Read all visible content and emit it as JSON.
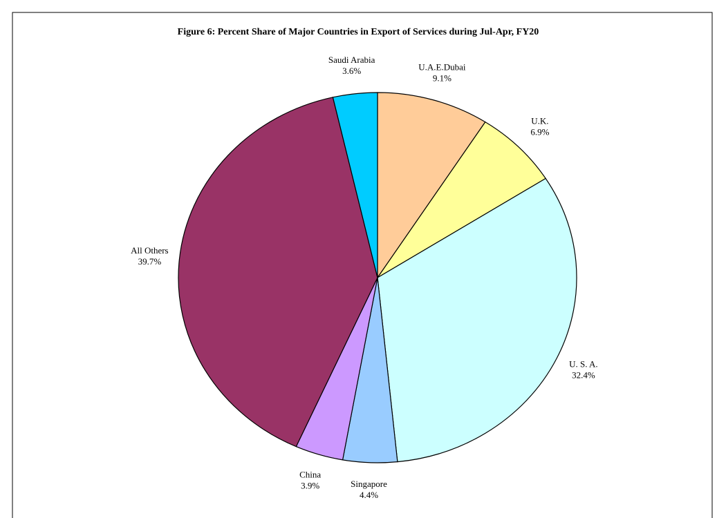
{
  "chart_data": {
    "type": "pie",
    "title": "Figure 6: Percent Share of Major Countries in Export  of Services during Jul-Apr, FY20",
    "categories": [
      "U.A.E.Dubai",
      "U.K.",
      "U. S. A.",
      "Singapore",
      "China",
      "All Others",
      "Saudi Arabia"
    ],
    "values": [
      9.1,
      6.9,
      32.4,
      4.4,
      3.9,
      39.7,
      3.6
    ],
    "value_labels": [
      "9.1%",
      "6.9%",
      "32.4%",
      "4.4%",
      "3.9%",
      "39.7%",
      "3.6%"
    ],
    "colors": [
      "#FFCC99",
      "#FFFF99",
      "#CCFFFF",
      "#99CCFF",
      "#CC99FF",
      "#993366",
      "#00CCFF"
    ]
  }
}
